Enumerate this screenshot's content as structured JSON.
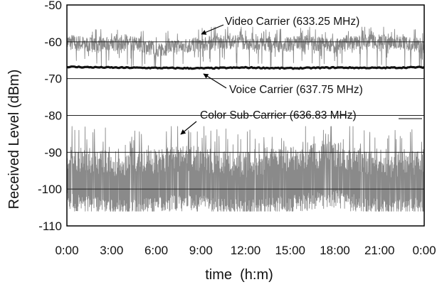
{
  "chart_data": {
    "type": "line",
    "title": "",
    "xlabel": "time  (h:m)",
    "ylabel": "Received Level (dBm)",
    "x_ticks": [
      "0:00",
      "3:00",
      "6:00",
      "9:00",
      "12:00",
      "15:00",
      "18:00",
      "21:00",
      "0:00"
    ],
    "x_range_hours": [
      0,
      24
    ],
    "y_ticks": [
      "-50",
      "-60",
      "-70",
      "-80",
      "-90",
      "-100",
      "-110"
    ],
    "ylim": [
      -110,
      -50
    ],
    "grid": "horizontal",
    "legend": "none",
    "series": [
      {
        "name": "Video Carrier (633.25 MHz)",
        "color": "#8a8a8a",
        "mean_dbm": -60,
        "range_dbm": [
          -67,
          -56
        ],
        "x_hours": [
          0,
          2,
          4,
          6,
          8,
          10,
          12,
          14,
          16,
          18,
          20,
          22,
          24
        ],
        "values": [
          -60,
          -61,
          -60,
          -62,
          -61,
          -60,
          -60,
          -61,
          -60,
          -61,
          -60,
          -60,
          -61
        ]
      },
      {
        "name": "Voice Carrier (637.75 MHz)",
        "color": "#111111",
        "mean_dbm": -67,
        "range_dbm": [
          -67.5,
          -66.5
        ],
        "x_hours": [
          0,
          3,
          6,
          9,
          12,
          15,
          18,
          21,
          24
        ],
        "values": [
          -66.8,
          -67,
          -67.1,
          -67.2,
          -67,
          -67.2,
          -67,
          -67.1,
          -66.9
        ]
      },
      {
        "name": "Color Sub-Carrier (636.83 MHz)",
        "color": "#8a8a8a",
        "mean_dbm": -99,
        "range_dbm": [
          -106,
          -83
        ],
        "x_hours": [
          0,
          2,
          4,
          6,
          8,
          10,
          12,
          14,
          16,
          18,
          20,
          22,
          24
        ],
        "values": [
          -98,
          -99,
          -100,
          -99,
          -98,
          -99,
          -100,
          -99,
          -98,
          -97,
          -99,
          -100,
          -99
        ]
      }
    ],
    "annotations": [
      {
        "text": "Video Carrier (633.25 MHz)",
        "series": 0
      },
      {
        "text": "Voice Carrier (637.75 MHz)",
        "series": 1
      },
      {
        "text": "Color Sub-Carrier (636.83 MHz)",
        "series": 2
      }
    ]
  }
}
